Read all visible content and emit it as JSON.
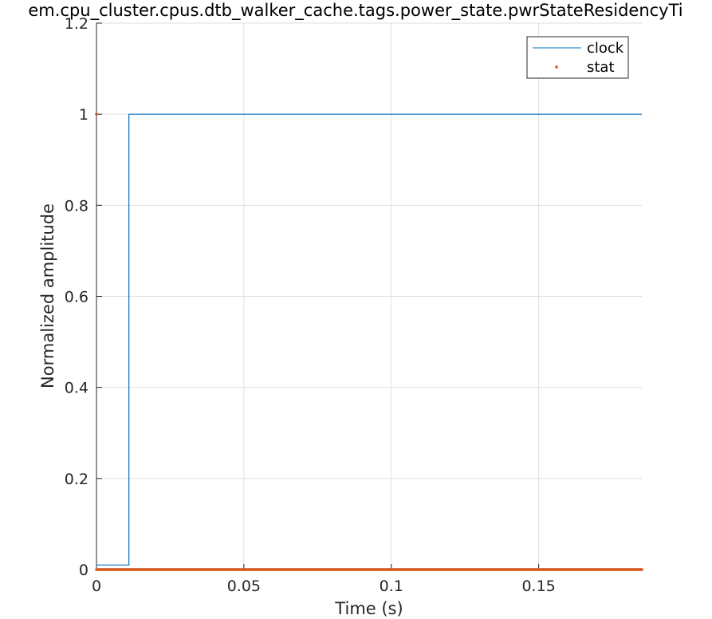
{
  "chart_data": {
    "type": "line",
    "title": "em.cpu_cluster.cpus.dtb_walker_cache.tags.power_state.pwrStateResidencyTi",
    "xlabel": "Time (s)",
    "ylabel": "Normalized amplitude",
    "xlim": [
      0,
      0.185
    ],
    "ylim": [
      0,
      1.2
    ],
    "x_ticks": [
      0,
      0.05,
      0.1,
      0.15
    ],
    "x_tick_labels": [
      "0",
      "0.05",
      "0.1",
      "0.15"
    ],
    "y_ticks": [
      0,
      0.2,
      0.4,
      0.6,
      0.8,
      1.0,
      1.2
    ],
    "y_tick_labels": [
      "0",
      "0.2",
      "0.4",
      "0.6",
      "0.8",
      "1",
      "1.2"
    ],
    "grid": true,
    "legend_position": "top-right",
    "series": [
      {
        "name": "clock",
        "style": "line",
        "color": "#0072BD",
        "x": [
          0,
          0.011,
          0.011,
          0.185
        ],
        "y": [
          0.01,
          0.01,
          1.0,
          1.0
        ]
      },
      {
        "name": "stat",
        "style": "dots",
        "color": "#D95319",
        "x": [
          0,
          0,
          0.185
        ],
        "y": [
          1.0,
          0,
          0
        ]
      }
    ],
    "legend_entries": [
      {
        "name": "clock",
        "color": "#0072BD",
        "marker": "line"
      },
      {
        "name": "stat",
        "color": "#D95319",
        "marker": "dot"
      }
    ]
  }
}
